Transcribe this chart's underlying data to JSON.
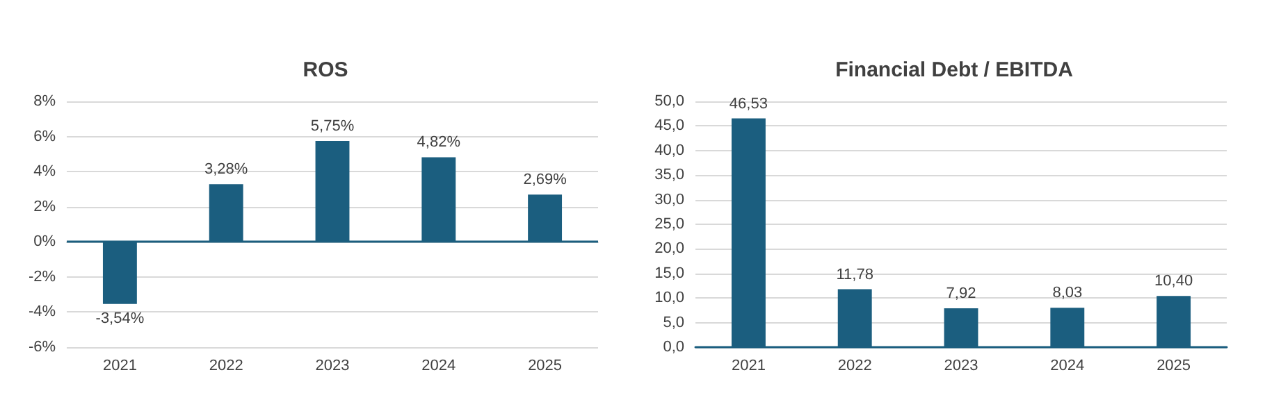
{
  "chart_data": [
    {
      "type": "bar",
      "title": "ROS",
      "categories": [
        "2021",
        "2022",
        "2023",
        "2024",
        "2025"
      ],
      "values": [
        -3.54,
        3.28,
        5.75,
        4.82,
        2.69
      ],
      "value_labels": [
        "-3,54%",
        "3,28%",
        "5,75%",
        "4,82%",
        "2,69%"
      ],
      "color": "#1b5e7f",
      "ylim": [
        -6,
        8
      ],
      "yticks": [
        {
          "value": -6,
          "label": "-6%"
        },
        {
          "value": -4,
          "label": "-4%"
        },
        {
          "value": -2,
          "label": "-2%"
        },
        {
          "value": 0,
          "label": "0%"
        },
        {
          "value": 2,
          "label": "2%"
        },
        {
          "value": 4,
          "label": "4%"
        },
        {
          "value": 6,
          "label": "6%"
        },
        {
          "value": 8,
          "label": "8%"
        }
      ],
      "grid": "y",
      "ref_lines": [
        {
          "axis": "y",
          "value": 0,
          "color": "#1b5e7f"
        }
      ]
    },
    {
      "type": "bar",
      "title": "Financial Debt / EBITDA",
      "categories": [
        "2021",
        "2022",
        "2023",
        "2024",
        "2025"
      ],
      "values": [
        46.53,
        11.78,
        7.92,
        8.03,
        10.4
      ],
      "value_labels": [
        "46,53",
        "11,78",
        "7,92",
        "8,03",
        "10,40"
      ],
      "color": "#1b5e7f",
      "ylim": [
        0,
        50
      ],
      "yticks": [
        {
          "value": 0,
          "label": "0,0"
        },
        {
          "value": 5,
          "label": "5,0"
        },
        {
          "value": 10,
          "label": "10,0"
        },
        {
          "value": 15,
          "label": "15,0"
        },
        {
          "value": 20,
          "label": "20,0"
        },
        {
          "value": 25,
          "label": "25,0"
        },
        {
          "value": 30,
          "label": "30,0"
        },
        {
          "value": 35,
          "label": "35,0"
        },
        {
          "value": 40,
          "label": "40,0"
        },
        {
          "value": 45,
          "label": "45,0"
        },
        {
          "value": 50,
          "label": "50,0"
        }
      ],
      "grid": "y"
    }
  ]
}
